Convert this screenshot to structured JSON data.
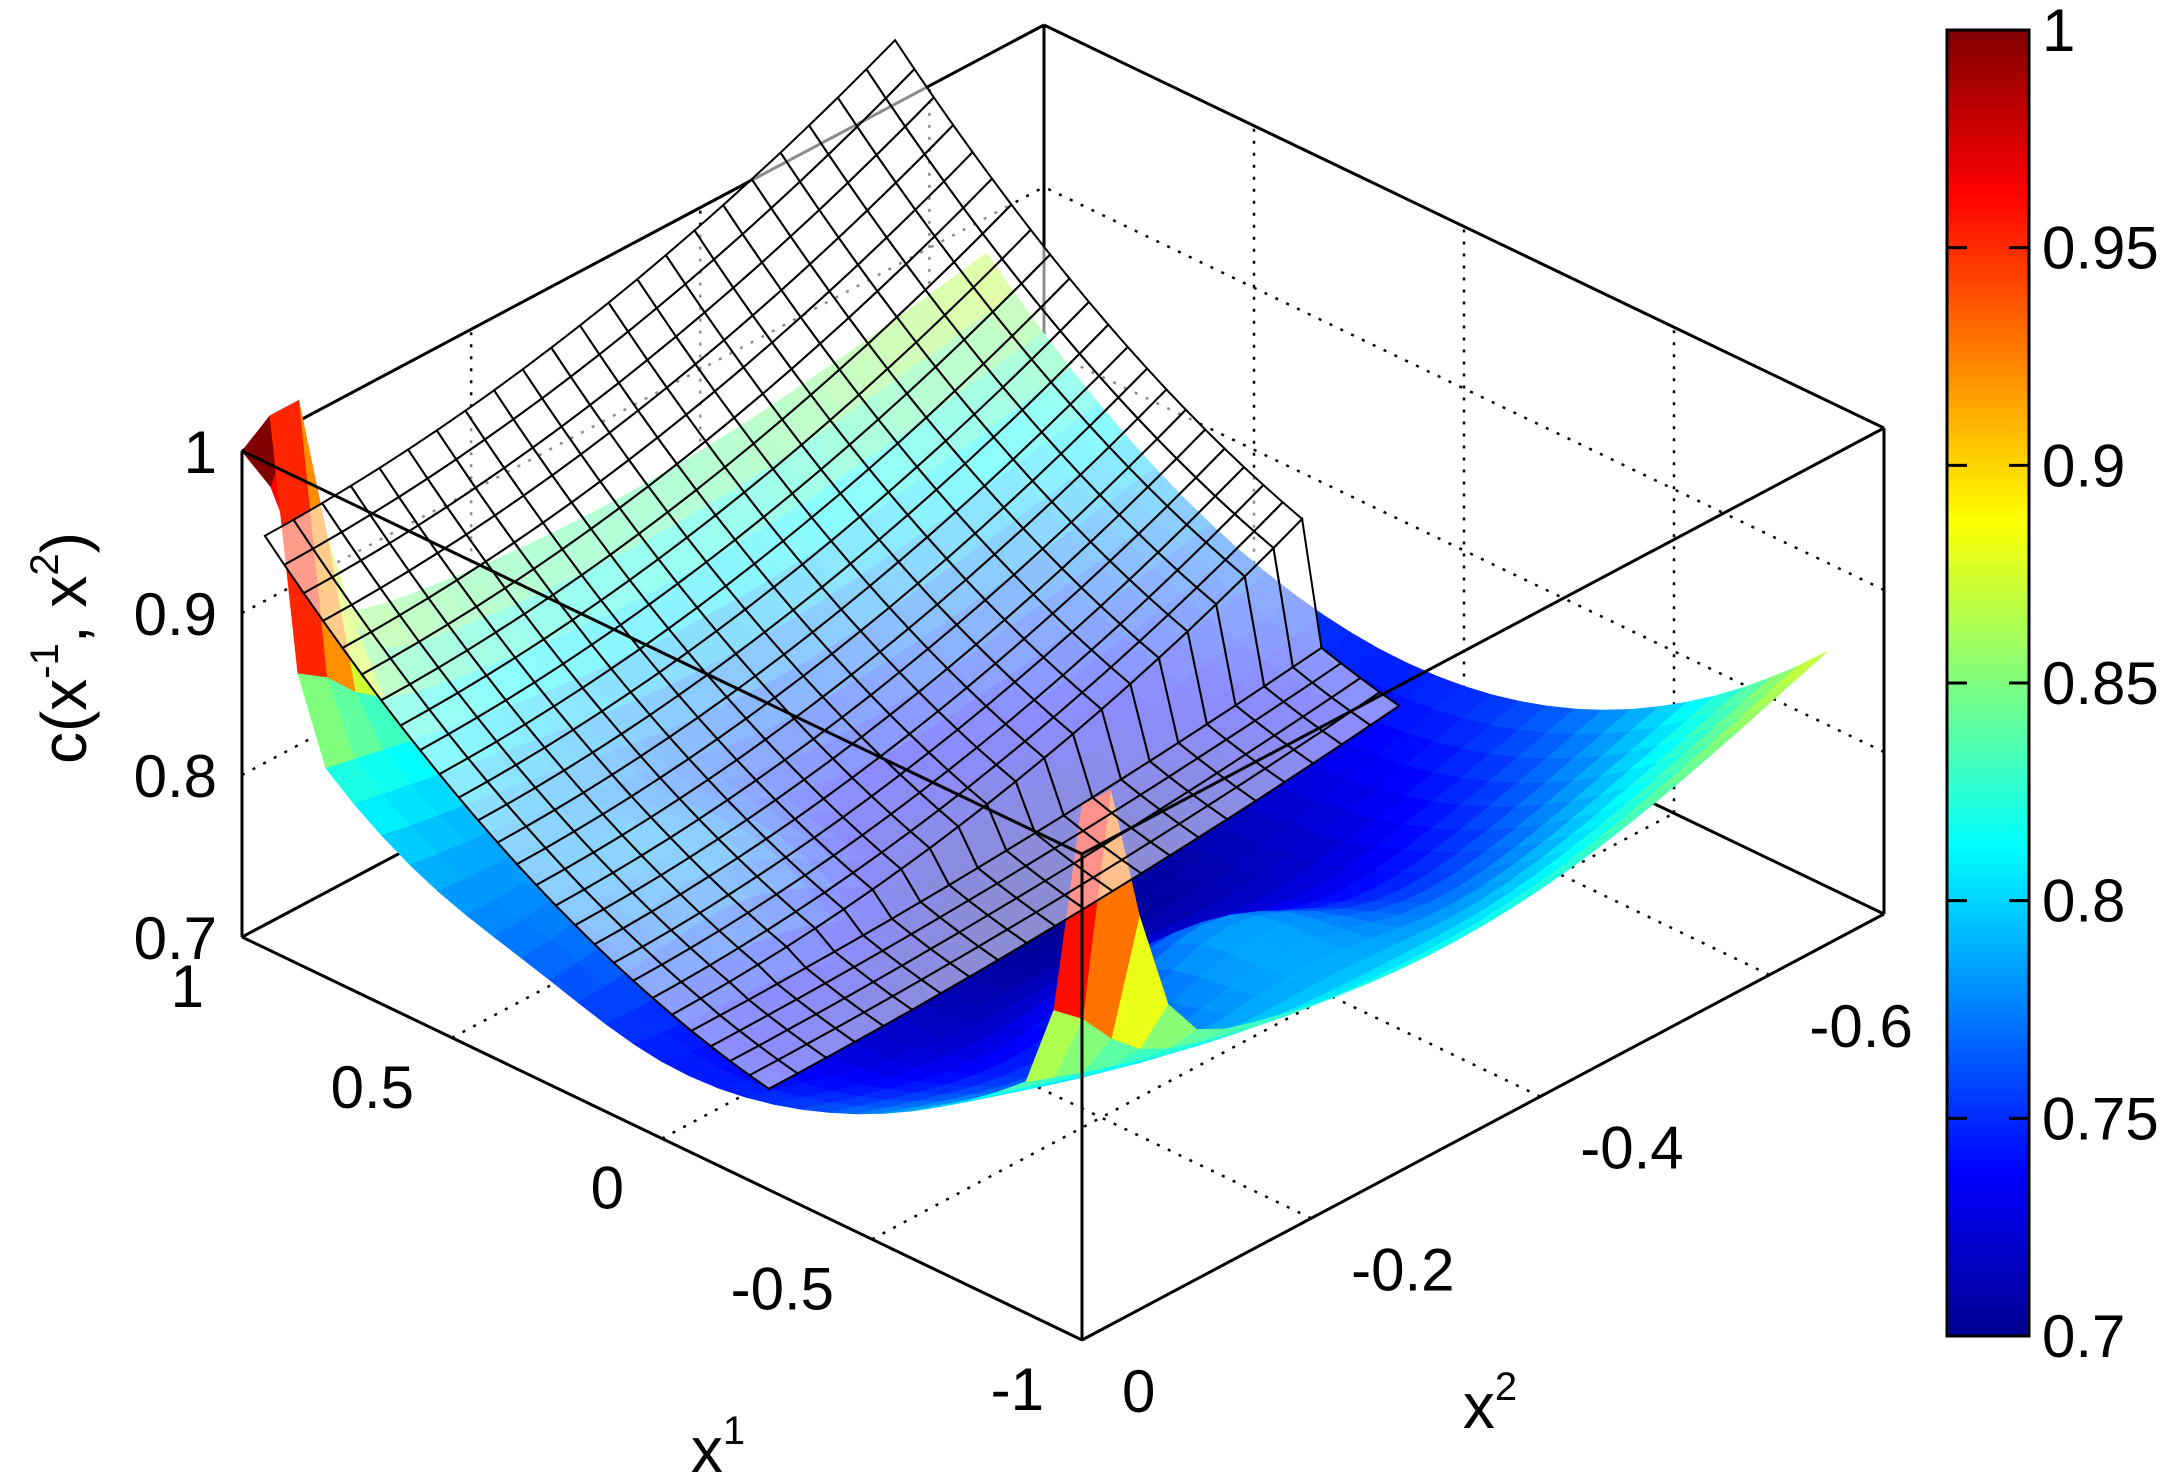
{
  "chart_data": {
    "type": "surface",
    "title": "",
    "xlabel": {
      "base": "x",
      "sup": "1"
    },
    "ylabel": {
      "base": "x",
      "sup": "2"
    },
    "zlabel": {
      "pre": "c(x",
      "sup1": "-1",
      "mid": ", x",
      "sup2": "2",
      "post": ")"
    },
    "xlim": [
      -1,
      1
    ],
    "ylim": [
      -0.7,
      0
    ],
    "zlim": [
      0.7,
      1
    ],
    "xticks": [
      {
        "v": 1,
        "label": "1"
      },
      {
        "v": 0.5,
        "label": "0.5"
      },
      {
        "v": 0,
        "label": "0"
      },
      {
        "v": -0.5,
        "label": "-0.5"
      },
      {
        "v": -1,
        "label": "-1"
      }
    ],
    "yticks": [
      {
        "v": 0,
        "label": "0"
      },
      {
        "v": -0.2,
        "label": "-0.2"
      },
      {
        "v": -0.4,
        "label": "-0.4"
      },
      {
        "v": -0.6,
        "label": "-0.6"
      }
    ],
    "zticks": [
      {
        "v": 0.7,
        "label": "0.7"
      },
      {
        "v": 0.8,
        "label": "0.8"
      },
      {
        "v": 0.9,
        "label": "0.9"
      },
      {
        "v": 1,
        "label": "1"
      }
    ],
    "colorbar": {
      "colormap": "jet",
      "range": [
        0.7,
        1
      ],
      "ticks": [
        {
          "v": 1,
          "label": "1"
        },
        {
          "v": 0.95,
          "label": "0.95"
        },
        {
          "v": 0.9,
          "label": "0.9"
        },
        {
          "v": 0.85,
          "label": "0.85"
        },
        {
          "v": 0.8,
          "label": "0.8"
        },
        {
          "v": 0.75,
          "label": "0.75"
        },
        {
          "v": 0.7,
          "label": "0.7"
        }
      ]
    },
    "grid": "dotted",
    "series": [
      {
        "kind": "colored-surface",
        "x_range": [
          -1,
          1
        ],
        "y_range": [
          -0.65,
          0
        ]
      },
      {
        "kind": "wireframe-mesh",
        "edge_color": "#000000",
        "face_color": "#ffffff"
      }
    ],
    "colors": {
      "jet_stops": [
        "#00008f",
        "#0000ff",
        "#00ffff",
        "#ffff00",
        "#ff0000",
        "#800000"
      ]
    }
  }
}
